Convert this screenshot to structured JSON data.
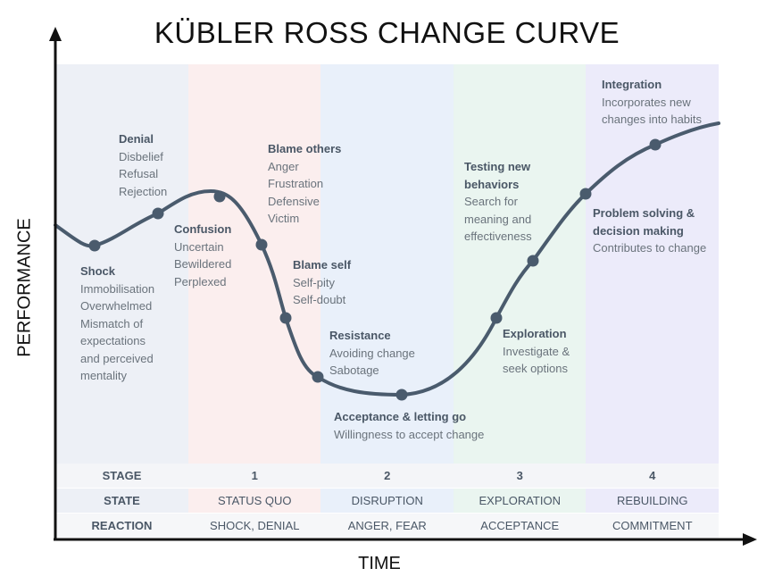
{
  "title": "KÜBLER ROSS CHANGE CURVE",
  "y_axis_label": "PERFORMANCE",
  "x_axis_label": "TIME",
  "colors": {
    "curve": "#4a5b6d",
    "axis": "#111111",
    "bands": [
      "#edf0f6",
      "#fbeeee",
      "#e9f0fa",
      "#eaf5f0",
      "#ecebfa"
    ]
  },
  "annotations": {
    "shock": {
      "heading": "Shock",
      "lines": [
        "Immobilisation",
        "Overwhelmed",
        "Mismatch of",
        "expectations",
        "and perceived",
        "mentality"
      ]
    },
    "denial": {
      "heading": "Denial",
      "lines": [
        "Disbelief",
        "Refusal",
        "Rejection"
      ]
    },
    "confusion": {
      "heading": "Confusion",
      "lines": [
        "Uncertain",
        "Bewildered",
        "Perplexed"
      ]
    },
    "blame_others": {
      "heading": "Blame others",
      "lines": [
        "Anger",
        "Frustration",
        "Defensive",
        "Victim"
      ]
    },
    "blame_self": {
      "heading": "Blame self",
      "lines": [
        "Self-pity",
        "Self-doubt"
      ]
    },
    "resistance": {
      "heading": "Resistance",
      "lines": [
        "Avoiding change",
        "Sabotage"
      ]
    },
    "acceptance": {
      "heading": "Acceptance & letting go",
      "lines": [
        "Willingness to accept change"
      ]
    },
    "exploration": {
      "heading": "Exploration",
      "lines": [
        "Investigate &",
        "seek options"
      ]
    },
    "testing": {
      "heading_lines": [
        "Testing new",
        "behaviors"
      ],
      "lines": [
        "Search for",
        "meaning and",
        "effectiveness"
      ]
    },
    "problem_solving": {
      "heading_lines": [
        "Problem solving &",
        "decision making"
      ],
      "lines": [
        "Contributes to change"
      ]
    },
    "integration": {
      "heading": "Integration",
      "lines": [
        "Incorporates new",
        "changes into habits"
      ]
    }
  },
  "table": {
    "rows": [
      {
        "label": "STAGE",
        "cells": [
          "1",
          "2",
          "3",
          "4"
        ]
      },
      {
        "label": "STATE",
        "cells": [
          "STATUS QUO",
          "DISRUPTION",
          "EXPLORATION",
          "REBUILDING"
        ]
      },
      {
        "label": "REACTION",
        "cells": [
          "SHOCK, DENIAL",
          "ANGER, FEAR",
          "ACCEPTANCE",
          "COMMITMENT"
        ]
      }
    ]
  }
}
